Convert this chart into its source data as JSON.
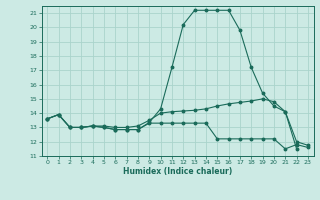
{
  "xlabel": "Humidex (Indice chaleur)",
  "bg_color": "#cceae4",
  "grid_color": "#aad4cc",
  "line_color": "#1a6b5a",
  "xlim": [
    -0.5,
    23.5
  ],
  "ylim": [
    11,
    21.5
  ],
  "xticks": [
    0,
    1,
    2,
    3,
    4,
    5,
    6,
    7,
    8,
    9,
    10,
    11,
    12,
    13,
    14,
    15,
    16,
    17,
    18,
    19,
    20,
    21,
    22,
    23
  ],
  "yticks": [
    11,
    12,
    13,
    14,
    15,
    16,
    17,
    18,
    19,
    20,
    21
  ],
  "curve1_x": [
    0,
    1,
    2,
    3,
    4,
    5,
    6,
    7,
    8,
    9,
    10,
    11,
    12,
    13,
    14,
    15,
    16,
    17,
    18,
    19,
    20,
    21,
    22
  ],
  "curve1_y": [
    13.6,
    13.9,
    13.0,
    13.0,
    13.1,
    13.0,
    12.85,
    12.85,
    12.85,
    13.35,
    14.3,
    17.2,
    20.2,
    21.2,
    21.2,
    21.2,
    21.2,
    19.8,
    17.2,
    15.4,
    14.5,
    14.1,
    11.5
  ],
  "curve2_x": [
    0,
    1,
    2,
    3,
    4,
    5,
    6,
    7,
    8,
    9,
    10,
    11,
    12,
    13,
    14,
    15,
    16,
    17,
    18,
    19,
    20,
    21,
    22,
    23
  ],
  "curve2_y": [
    13.6,
    13.9,
    13.0,
    13.0,
    13.1,
    13.1,
    13.0,
    13.0,
    13.1,
    13.5,
    14.0,
    14.1,
    14.15,
    14.2,
    14.3,
    14.5,
    14.65,
    14.75,
    14.85,
    15.0,
    14.8,
    14.1,
    12.0,
    11.75
  ],
  "curve3_x": [
    0,
    1,
    2,
    3,
    4,
    5,
    6,
    7,
    8,
    9,
    10,
    11,
    12,
    13,
    14,
    15,
    16,
    17,
    18,
    19,
    20,
    21,
    22,
    23
  ],
  "curve3_y": [
    13.6,
    13.9,
    13.0,
    13.0,
    13.1,
    13.0,
    12.85,
    12.85,
    12.85,
    13.3,
    13.3,
    13.3,
    13.3,
    13.3,
    13.3,
    12.2,
    12.2,
    12.2,
    12.2,
    12.2,
    12.2,
    11.5,
    11.8,
    11.6
  ]
}
